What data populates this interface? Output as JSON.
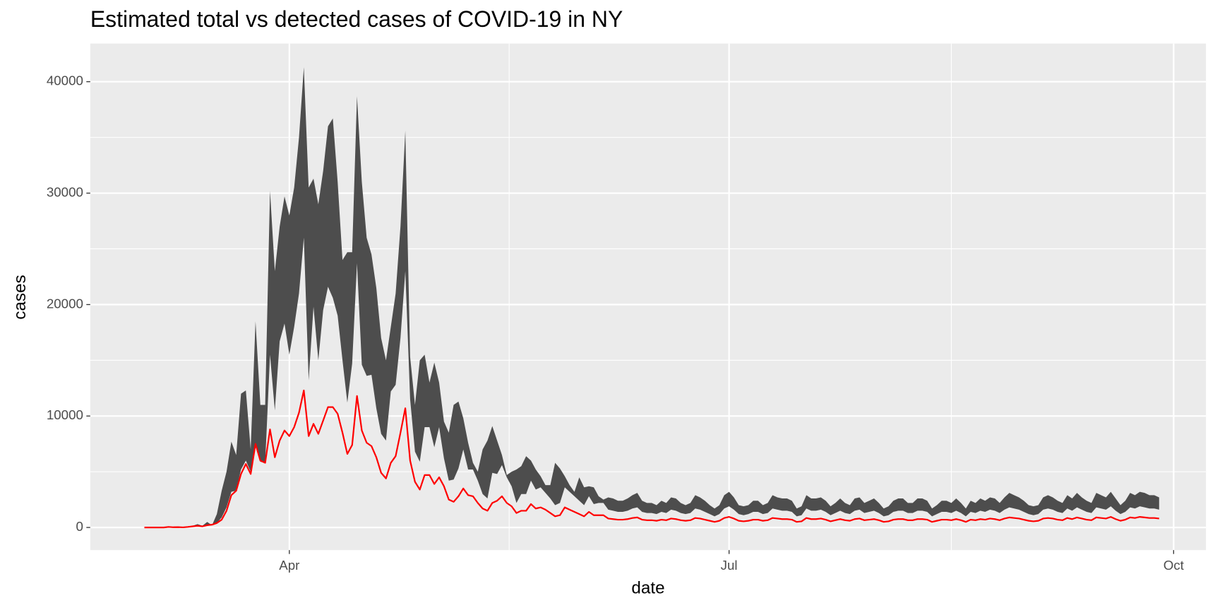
{
  "chart_data": {
    "type": "line",
    "title": "Estimated total vs detected cases of COVID-19 in NY",
    "x_label": "date",
    "y_label": "cases",
    "x": [
      -30,
      -29,
      -28,
      -27,
      -26,
      -25,
      -24,
      -23,
      -22,
      -21,
      -20,
      -19,
      -18,
      -17,
      -16,
      -15,
      -14,
      -13,
      -12,
      -11,
      -10,
      -9,
      -8,
      -7,
      -6,
      -5,
      -4,
      -3,
      -2,
      -1,
      0,
      1,
      2,
      3,
      4,
      5,
      6,
      7,
      8,
      9,
      10,
      11,
      12,
      13,
      14,
      15,
      16,
      17,
      18,
      19,
      20,
      21,
      22,
      23,
      24,
      25,
      26,
      27,
      28,
      29,
      30,
      31,
      32,
      33,
      34,
      35,
      36,
      37,
      38,
      39,
      40,
      41,
      42,
      43,
      44,
      45,
      46,
      47,
      48,
      49,
      50,
      51,
      52,
      53,
      54,
      55,
      56,
      57,
      58,
      59,
      60,
      61,
      62,
      63,
      64,
      65,
      66,
      67,
      68,
      69,
      70,
      71,
      72,
      73,
      74,
      75,
      76,
      77,
      78,
      79,
      80,
      81,
      82,
      83,
      84,
      85,
      86,
      87,
      88,
      89,
      90,
      91,
      92,
      93,
      94,
      95,
      96,
      97,
      98,
      99,
      100,
      101,
      102,
      103,
      104,
      105,
      106,
      107,
      108,
      109,
      110,
      111,
      112,
      113,
      114,
      115,
      116,
      117,
      118,
      119,
      120,
      121,
      122,
      123,
      124,
      125,
      126,
      127,
      128,
      129,
      130,
      131,
      132,
      133,
      134,
      135,
      136,
      137,
      138,
      139,
      140,
      141,
      142,
      143,
      144,
      145,
      146,
      147,
      148,
      149,
      150,
      151,
      152,
      153,
      154,
      155,
      156,
      157,
      158,
      159,
      160,
      161,
      162,
      163,
      164,
      165,
      166,
      167,
      168,
      169,
      170,
      171,
      172,
      173,
      174,
      175,
      176,
      177,
      178,
      179,
      180
    ],
    "ribbon": {
      "color": "#4d4d4d",
      "upper": [
        0,
        0,
        0,
        0,
        0,
        80,
        30,
        50,
        20,
        80,
        150,
        300,
        150,
        500,
        200,
        1200,
        3300,
        5000,
        7700,
        6500,
        12000,
        12300,
        7000,
        18500,
        11000,
        11000,
        30200,
        23000,
        27000,
        29700,
        28000,
        30500,
        35000,
        41300,
        30500,
        31300,
        29000,
        32000,
        36000,
        36700,
        31000,
        24000,
        24700,
        24700,
        38700,
        31000,
        26000,
        24500,
        21500,
        17000,
        15000,
        18000,
        21000,
        27000,
        35600,
        15300,
        11000,
        15000,
        15500,
        13000,
        14800,
        13000,
        9500,
        8500,
        11000,
        11300,
        9800,
        7600,
        5800,
        5000,
        7000,
        7800,
        9100,
        7800,
        6500,
        4700,
        5000,
        5200,
        5500,
        6400,
        6000,
        5200,
        4600,
        3800,
        3800,
        5800,
        5300,
        4600,
        3800,
        3200,
        4500,
        3600,
        3700,
        3600,
        2800,
        2500,
        2700,
        2600,
        2400,
        2400,
        2600,
        2900,
        3100,
        2400,
        2200,
        2200,
        2000,
        2400,
        2200,
        2700,
        2600,
        2200,
        2000,
        2200,
        2900,
        2700,
        2400,
        2000,
        1700,
        2000,
        2900,
        3200,
        2700,
        2000,
        1900,
        2000,
        2400,
        2400,
        2000,
        2200,
        2900,
        2700,
        2600,
        2600,
        2400,
        1700,
        1900,
        2900,
        2600,
        2600,
        2700,
        2400,
        1900,
        2200,
        2600,
        2200,
        2000,
        2600,
        2700,
        2200,
        2400,
        2600,
        2200,
        1700,
        1900,
        2400,
        2600,
        2600,
        2200,
        2200,
        2600,
        2600,
        2400,
        1700,
        2000,
        2400,
        2400,
        2200,
        2600,
        2200,
        1700,
        2400,
        2200,
        2600,
        2400,
        2700,
        2600,
        2200,
        2700,
        3100,
        2900,
        2700,
        2400,
        2000,
        1900,
        2000,
        2700,
        2900,
        2700,
        2400,
        2200,
        2900,
        2600,
        3100,
        2700,
        2400,
        2200,
        3100,
        2900,
        2700,
        3200,
        2600,
        2000,
        2400,
        3100,
        2900,
        3200,
        3100,
        2900,
        2900,
        2700
      ],
      "lower": [
        0,
        0,
        0,
        0,
        0,
        40,
        15,
        25,
        8,
        40,
        80,
        120,
        80,
        150,
        200,
        400,
        900,
        1800,
        3200,
        3300,
        5200,
        6000,
        5000,
        7500,
        5900,
        5800,
        15500,
        10500,
        16700,
        18300,
        15500,
        18000,
        21000,
        26000,
        13200,
        19800,
        15000,
        19500,
        21600,
        20600,
        19000,
        15000,
        11200,
        14700,
        23700,
        14600,
        13600,
        13700,
        10700,
        8400,
        7800,
        12200,
        12800,
        17000,
        23000,
        11500,
        6800,
        5900,
        9000,
        9000,
        7200,
        9000,
        6200,
        4200,
        4300,
        5300,
        7000,
        5200,
        5200,
        4200,
        3000,
        2600,
        4900,
        4800,
        5600,
        4500,
        3700,
        2200,
        3000,
        3000,
        4200,
        3400,
        3600,
        3100,
        2600,
        2000,
        2200,
        3600,
        3200,
        2800,
        2400,
        2000,
        2800,
        2100,
        2200,
        2200,
        1600,
        1500,
        1400,
        1400,
        1500,
        1700,
        1800,
        1400,
        1300,
        1300,
        1200,
        1400,
        1300,
        1600,
        1500,
        1300,
        1200,
        1300,
        1700,
        1600,
        1400,
        1200,
        1000,
        1200,
        1700,
        1900,
        1600,
        1200,
        1100,
        1200,
        1400,
        1400,
        1200,
        1300,
        1700,
        1600,
        1500,
        1500,
        1400,
        1000,
        1100,
        1700,
        1500,
        1500,
        1600,
        1400,
        1100,
        1300,
        1500,
        1300,
        1200,
        1500,
        1600,
        1300,
        1400,
        1500,
        1300,
        1000,
        1100,
        1400,
        1500,
        1500,
        1300,
        1300,
        1500,
        1500,
        1400,
        1000,
        1200,
        1400,
        1400,
        1300,
        1500,
        1300,
        1000,
        1400,
        1300,
        1500,
        1400,
        1600,
        1500,
        1300,
        1600,
        1800,
        1700,
        1600,
        1400,
        1200,
        1100,
        1200,
        1600,
        1700,
        1600,
        1400,
        1300,
        1700,
        1500,
        1800,
        1600,
        1400,
        1300,
        1800,
        1700,
        1600,
        1900,
        1500,
        1200,
        1400,
        1800,
        1700,
        1900,
        1800,
        1700,
        1700,
        1600
      ]
    },
    "line": {
      "color": "#ff0000",
      "values": [
        0,
        0,
        0,
        0,
        0,
        50,
        20,
        30,
        10,
        50,
        100,
        150,
        100,
        200,
        250,
        400,
        700,
        1500,
        2900,
        3300,
        4800,
        5700,
        4800,
        7500,
        6000,
        5800,
        8800,
        6300,
        7800,
        8700,
        8200,
        9000,
        10300,
        12300,
        8200,
        9300,
        8400,
        9600,
        10800,
        10800,
        10200,
        8500,
        6600,
        7400,
        11800,
        8700,
        7600,
        7300,
        6300,
        4900,
        4400,
        5800,
        6400,
        8500,
        10700,
        6000,
        4100,
        3400,
        4700,
        4700,
        3900,
        4500,
        3700,
        2500,
        2300,
        2800,
        3500,
        2900,
        2800,
        2200,
        1700,
        1500,
        2200,
        2400,
        2800,
        2200,
        1900,
        1300,
        1500,
        1500,
        2100,
        1700,
        1800,
        1600,
        1300,
        1000,
        1100,
        1800,
        1600,
        1400,
        1200,
        1000,
        1400,
        1100,
        1100,
        1100,
        800,
        750,
        700,
        700,
        750,
        850,
        900,
        700,
        650,
        650,
        600,
        700,
        650,
        800,
        750,
        650,
        600,
        650,
        850,
        800,
        700,
        600,
        500,
        600,
        850,
        950,
        800,
        600,
        550,
        600,
        700,
        700,
        600,
        650,
        850,
        800,
        750,
        750,
        700,
        500,
        550,
        850,
        750,
        750,
        800,
        700,
        550,
        650,
        750,
        650,
        600,
        750,
        800,
        650,
        700,
        750,
        650,
        500,
        550,
        700,
        750,
        750,
        650,
        650,
        750,
        750,
        700,
        500,
        600,
        700,
        700,
        650,
        750,
        650,
        500,
        700,
        650,
        750,
        700,
        800,
        750,
        650,
        800,
        900,
        850,
        800,
        700,
        600,
        550,
        600,
        800,
        850,
        800,
        700,
        650,
        850,
        750,
        900,
        800,
        700,
        650,
        900,
        850,
        800,
        950,
        750,
        600,
        700,
        900,
        850,
        950,
        900,
        850,
        850,
        800
      ]
    },
    "xlim": [
      -41.2,
      189.7
    ],
    "xticks": [
      {
        "value": 0,
        "label": "Apr"
      },
      {
        "value": 91,
        "label": "Jul"
      },
      {
        "value": 183,
        "label": "Oct"
      }
    ],
    "x_minor_ticks": [
      45.5,
      137
    ],
    "ylim": [
      -2030,
      43420
    ],
    "yticks": [
      0,
      10000,
      20000,
      30000,
      40000
    ],
    "y_minor_ticks": [
      5000,
      15000,
      25000,
      35000
    ],
    "grid": true
  }
}
